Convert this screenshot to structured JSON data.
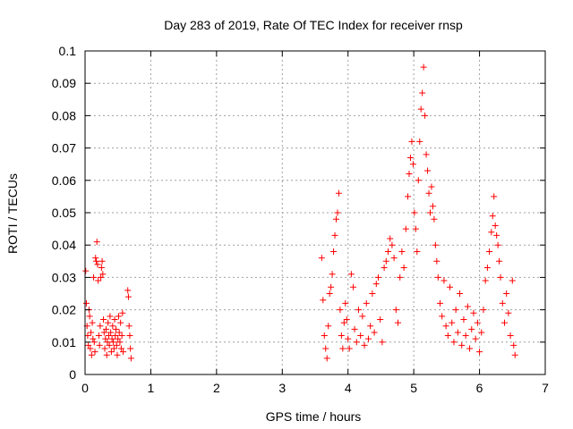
{
  "chart_data": {
    "type": "scatter",
    "title": "Day 283 of 2019, Rate Of TEC Index for receiver rnsp",
    "xlabel": "GPS time / hours",
    "ylabel": "ROTI / TECUs",
    "xlim": [
      0,
      7
    ],
    "ylim": [
      0,
      0.1
    ],
    "xticks": [
      0,
      1,
      2,
      3,
      4,
      5,
      6,
      7
    ],
    "xtick_labels": [
      "0",
      "1",
      "2",
      "3",
      "4",
      "5",
      "6",
      "7"
    ],
    "yticks": [
      0,
      0.01,
      0.02,
      0.03,
      0.04,
      0.05,
      0.06,
      0.07,
      0.08,
      0.09,
      0.1
    ],
    "ytick_labels": [
      "0",
      "0.01",
      "0.02",
      "0.03",
      "0.04",
      "0.05",
      "0.06",
      "0.07",
      "0.08",
      "0.09",
      "0.1"
    ],
    "grid": true,
    "marker": "+",
    "color": "#ff0000",
    "series": [
      {
        "name": "ROTI",
        "points": [
          [
            0.01,
            0.032
          ],
          [
            0.02,
            0.022
          ],
          [
            0.03,
            0.015
          ],
          [
            0.04,
            0.012
          ],
          [
            0.05,
            0.009
          ],
          [
            0.06,
            0.02
          ],
          [
            0.07,
            0.018
          ],
          [
            0.08,
            0.008
          ],
          [
            0.09,
            0.013
          ],
          [
            0.1,
            0.006
          ],
          [
            0.11,
            0.016
          ],
          [
            0.12,
            0.011
          ],
          [
            0.13,
            0.03
          ],
          [
            0.14,
            0.01
          ],
          [
            0.15,
            0.007
          ],
          [
            0.16,
            0.036
          ],
          [
            0.17,
            0.035
          ],
          [
            0.18,
            0.041
          ],
          [
            0.19,
            0.034
          ],
          [
            0.2,
            0.029
          ],
          [
            0.21,
            0.012
          ],
          [
            0.22,
            0.009
          ],
          [
            0.23,
            0.015
          ],
          [
            0.24,
            0.03
          ],
          [
            0.25,
            0.033
          ],
          [
            0.26,
            0.035
          ],
          [
            0.27,
            0.031
          ],
          [
            0.28,
            0.017
          ],
          [
            0.29,
            0.013
          ],
          [
            0.3,
            0.008
          ],
          [
            0.31,
            0.011
          ],
          [
            0.32,
            0.014
          ],
          [
            0.33,
            0.006
          ],
          [
            0.34,
            0.01
          ],
          [
            0.35,
            0.016
          ],
          [
            0.36,
            0.012
          ],
          [
            0.37,
            0.009
          ],
          [
            0.38,
            0.018
          ],
          [
            0.39,
            0.013
          ],
          [
            0.4,
            0.007
          ],
          [
            0.41,
            0.011
          ],
          [
            0.42,
            0.015
          ],
          [
            0.43,
            0.01
          ],
          [
            0.44,
            0.008
          ],
          [
            0.45,
            0.017
          ],
          [
            0.46,
            0.012
          ],
          [
            0.47,
            0.014
          ],
          [
            0.48,
            0.009
          ],
          [
            0.49,
            0.006
          ],
          [
            0.5,
            0.011
          ],
          [
            0.51,
            0.018
          ],
          [
            0.52,
            0.013
          ],
          [
            0.53,
            0.01
          ],
          [
            0.54,
            0.016
          ],
          [
            0.55,
            0.008
          ],
          [
            0.56,
            0.012
          ],
          [
            0.57,
            0.019
          ],
          [
            0.58,
            0.007
          ],
          [
            0.65,
            0.026
          ],
          [
            0.66,
            0.024
          ],
          [
            0.67,
            0.015
          ],
          [
            0.68,
            0.012
          ],
          [
            0.69,
            0.008
          ],
          [
            0.7,
            0.005
          ],
          [
            3.6,
            0.036
          ],
          [
            3.62,
            0.023
          ],
          [
            3.64,
            0.012
          ],
          [
            3.66,
            0.008
          ],
          [
            3.68,
            0.005
          ],
          [
            3.7,
            0.015
          ],
          [
            3.72,
            0.025
          ],
          [
            3.74,
            0.027
          ],
          [
            3.76,
            0.031
          ],
          [
            3.78,
            0.038
          ],
          [
            3.8,
            0.043
          ],
          [
            3.82,
            0.048
          ],
          [
            3.84,
            0.05
          ],
          [
            3.86,
            0.056
          ],
          [
            3.88,
            0.02
          ],
          [
            3.9,
            0.012
          ],
          [
            3.92,
            0.008
          ],
          [
            3.94,
            0.016
          ],
          [
            3.96,
            0.022
          ],
          [
            3.98,
            0.017
          ],
          [
            4.0,
            0.011
          ],
          [
            4.02,
            0.008
          ],
          [
            4.05,
            0.031
          ],
          [
            4.08,
            0.027
          ],
          [
            4.1,
            0.014
          ],
          [
            4.13,
            0.01
          ],
          [
            4.16,
            0.02
          ],
          [
            4.19,
            0.012
          ],
          [
            4.22,
            0.018
          ],
          [
            4.25,
            0.009
          ],
          [
            4.28,
            0.022
          ],
          [
            4.31,
            0.011
          ],
          [
            4.34,
            0.015
          ],
          [
            4.37,
            0.025
          ],
          [
            4.4,
            0.013
          ],
          [
            4.43,
            0.028
          ],
          [
            4.46,
            0.03
          ],
          [
            4.49,
            0.017
          ],
          [
            4.52,
            0.01
          ],
          [
            4.55,
            0.033
          ],
          [
            4.58,
            0.035
          ],
          [
            4.61,
            0.038
          ],
          [
            4.64,
            0.042
          ],
          [
            4.67,
            0.04
          ],
          [
            4.7,
            0.036
          ],
          [
            4.73,
            0.02
          ],
          [
            4.76,
            0.016
          ],
          [
            4.79,
            0.03
          ],
          [
            4.82,
            0.038
          ],
          [
            4.85,
            0.033
          ],
          [
            4.88,
            0.045
          ],
          [
            4.91,
            0.055
          ],
          [
            4.93,
            0.062
          ],
          [
            4.95,
            0.067
          ],
          [
            4.97,
            0.072
          ],
          [
            4.99,
            0.065
          ],
          [
            5.01,
            0.05
          ],
          [
            5.03,
            0.045
          ],
          [
            5.05,
            0.038
          ],
          [
            5.07,
            0.06
          ],
          [
            5.09,
            0.072
          ],
          [
            5.11,
            0.082
          ],
          [
            5.13,
            0.087
          ],
          [
            5.15,
            0.095
          ],
          [
            5.17,
            0.08
          ],
          [
            5.19,
            0.068
          ],
          [
            5.21,
            0.063
          ],
          [
            5.23,
            0.056
          ],
          [
            5.25,
            0.05
          ],
          [
            5.27,
            0.058
          ],
          [
            5.29,
            0.052
          ],
          [
            5.31,
            0.048
          ],
          [
            5.33,
            0.04
          ],
          [
            5.35,
            0.035
          ],
          [
            5.37,
            0.03
          ],
          [
            5.4,
            0.022
          ],
          [
            5.43,
            0.018
          ],
          [
            5.46,
            0.029
          ],
          [
            5.49,
            0.015
          ],
          [
            5.52,
            0.012
          ],
          [
            5.55,
            0.027
          ],
          [
            5.58,
            0.016
          ],
          [
            5.61,
            0.01
          ],
          [
            5.64,
            0.02
          ],
          [
            5.67,
            0.013
          ],
          [
            5.7,
            0.025
          ],
          [
            5.73,
            0.009
          ],
          [
            5.76,
            0.017
          ],
          [
            5.79,
            0.012
          ],
          [
            5.82,
            0.021
          ],
          [
            5.85,
            0.008
          ],
          [
            5.88,
            0.014
          ],
          [
            5.91,
            0.019
          ],
          [
            5.94,
            0.011
          ],
          [
            5.97,
            0.016
          ],
          [
            6.0,
            0.007
          ],
          [
            6.03,
            0.013
          ],
          [
            6.06,
            0.02
          ],
          [
            6.09,
            0.029
          ],
          [
            6.12,
            0.033
          ],
          [
            6.15,
            0.038
          ],
          [
            6.18,
            0.044
          ],
          [
            6.2,
            0.049
          ],
          [
            6.22,
            0.055
          ],
          [
            6.24,
            0.046
          ],
          [
            6.26,
            0.043
          ],
          [
            6.28,
            0.04
          ],
          [
            6.3,
            0.035
          ],
          [
            6.32,
            0.03
          ],
          [
            6.35,
            0.022
          ],
          [
            6.38,
            0.016
          ],
          [
            6.41,
            0.025
          ],
          [
            6.44,
            0.019
          ],
          [
            6.47,
            0.012
          ],
          [
            6.5,
            0.029
          ],
          [
            6.52,
            0.009
          ],
          [
            6.54,
            0.006
          ]
        ]
      }
    ]
  }
}
